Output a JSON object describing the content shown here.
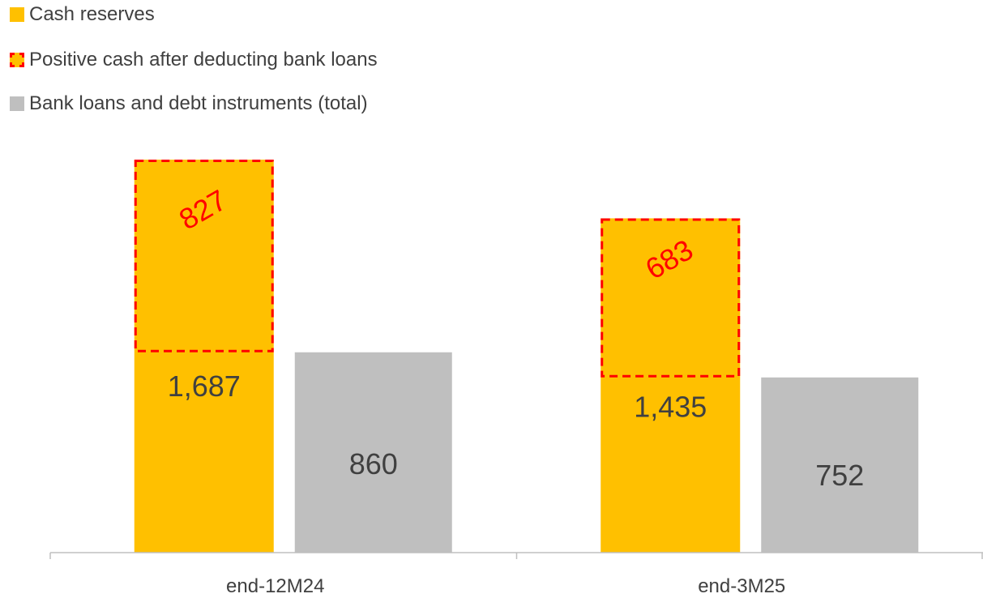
{
  "chart_data": {
    "type": "bar",
    "categories": [
      "end-12M24",
      "end-3M25"
    ],
    "series": [
      {
        "name": "Cash reserves",
        "values": [
          1687,
          1435
        ],
        "labels": [
          "1,687",
          "1,435"
        ],
        "color": "#ffc000"
      },
      {
        "name": "Bank loans and debt instruments (total)",
        "values": [
          860,
          752
        ],
        "labels": [
          "860",
          "752"
        ],
        "color": "#bfbfbf"
      }
    ],
    "highlight": {
      "name": "Positive cash after deducting bank loans",
      "values": [
        827,
        683
      ],
      "labels": [
        "827",
        "683"
      ],
      "border_color": "#ff0000",
      "fill_color": "#ffc000"
    },
    "legend": [
      {
        "label": "Cash reserves",
        "color": "#ffc000",
        "style": "solid"
      },
      {
        "label": "Positive cash after deducting bank loans",
        "color": "#ffc000",
        "border": "#ff0000",
        "style": "dashed"
      },
      {
        "label": "Bank loans and debt instruments (total)",
        "color": "#bfbfbf",
        "style": "solid"
      }
    ],
    "legend_position": "top-left",
    "title": "",
    "xlabel": "",
    "ylabel": "",
    "ylim": [
      0,
      1687
    ],
    "grid": false
  }
}
